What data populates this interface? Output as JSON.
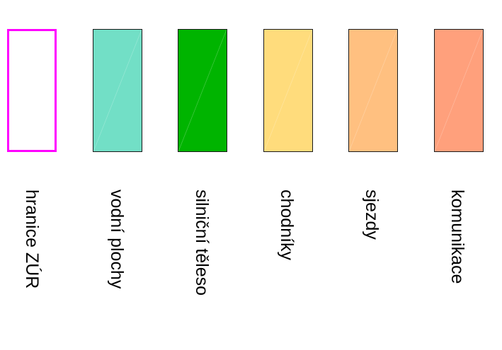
{
  "legend": {
    "items": [
      {
        "label": "hranice ZÚR",
        "fill": "#ffffff",
        "border": "#ff00ff",
        "style": "outline"
      },
      {
        "label": "vodní plochy",
        "fill": "#72dfc6",
        "border": "#1a1a1a",
        "style": "filled"
      },
      {
        "label": "silniční těleso",
        "fill": "#00b400",
        "border": "#1a1a1a",
        "style": "filled"
      },
      {
        "label": "chodníky",
        "fill": "#ffdc7c",
        "border": "#1a1a1a",
        "style": "filled"
      },
      {
        "label": "sjezdy",
        "fill": "#ffc080",
        "border": "#1a1a1a",
        "style": "filled"
      },
      {
        "label": "komunikace",
        "fill": "#ffa07c",
        "border": "#1a1a1a",
        "style": "filled"
      }
    ]
  }
}
